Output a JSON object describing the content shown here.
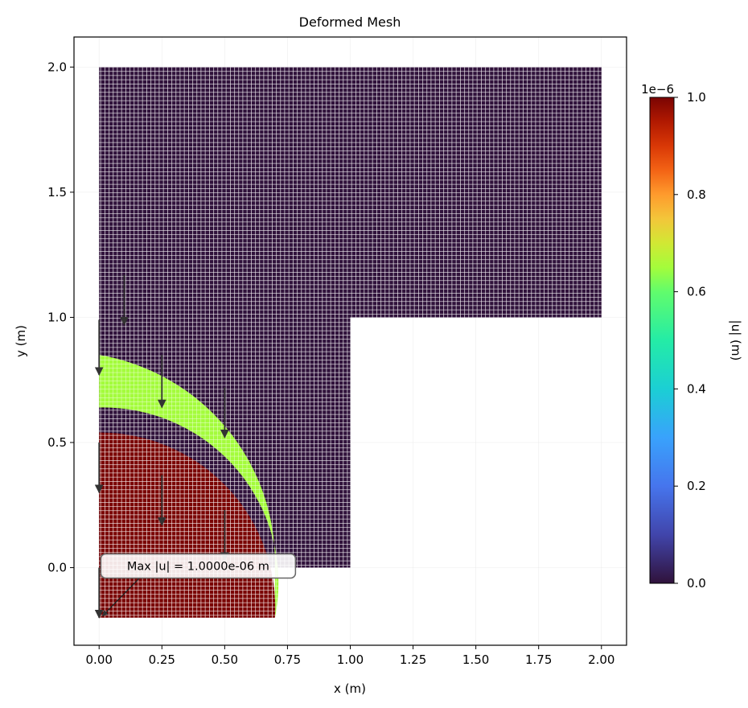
{
  "chart_data": {
    "type": "heatmap",
    "title": "Deformed Mesh",
    "xlabel": "x (m)",
    "ylabel": "y (m)",
    "xlim": [
      -0.1,
      2.1
    ],
    "ylim": [
      -0.31,
      2.12
    ],
    "xticks": [
      "0.00",
      "0.25",
      "0.50",
      "0.75",
      "1.00",
      "1.25",
      "1.50",
      "1.75",
      "2.00"
    ],
    "yticks": [
      "0.0",
      "0.5",
      "1.0",
      "1.5",
      "2.0"
    ],
    "grid": true,
    "colorbar": {
      "label": "|u| (m)",
      "range": [
        0,
        1.0
      ],
      "ticks": [
        "0.0",
        "0.2",
        "0.4",
        "0.6",
        "0.8",
        "1.0"
      ],
      "offset_text": "1e−6",
      "colormap": "turbo"
    },
    "domain": {
      "shape": "L-shaped",
      "vertical_leg": {
        "x": [
          0,
          1.0
        ],
        "y": [
          0,
          2.0
        ]
      },
      "horizontal_leg": {
        "x": [
          1.0,
          2.0
        ],
        "y": [
          1.0,
          2.0
        ]
      }
    },
    "displaced_regions": [
      {
        "name": "circular region",
        "radius": 0.7,
        "center": [
          0,
          0
        ],
        "displacement_y": -0.2,
        "magnitude": 1e-06
      },
      {
        "name": "annulus band",
        "radius_inner": 0.7,
        "radius_outer": 0.84,
        "center": [
          0,
          0
        ],
        "magnitude": 5e-07
      }
    ],
    "arrows": [
      {
        "x": 0.1,
        "y": 1.17,
        "dx": 0,
        "dy": -0.2
      },
      {
        "x": 0.0,
        "y": 0.99,
        "dx": 0,
        "dy": -0.22
      },
      {
        "x": 0.25,
        "y": 0.85,
        "dx": 0,
        "dy": -0.21
      },
      {
        "x": 0.5,
        "y": 0.72,
        "dx": 0,
        "dy": -0.2
      },
      {
        "x": 0.0,
        "y": 0.5,
        "dx": 0,
        "dy": -0.2
      },
      {
        "x": 0.25,
        "y": 0.37,
        "dx": 0,
        "dy": -0.2
      },
      {
        "x": 0.5,
        "y": 0.23,
        "dx": 0,
        "dy": -0.2
      },
      {
        "x": 0.0,
        "y": 0.0,
        "dx": 0,
        "dy": -0.2
      }
    ],
    "annotation": {
      "text": "Max |u| = 1.0000e-06 m",
      "points_to": [
        0.0,
        -0.2
      ],
      "text_at": [
        0.42,
        0.01
      ]
    },
    "colors": {
      "background_mesh": "#30123b",
      "max_region": "#7a0403",
      "band": "#a4fc3c",
      "arrow": "#333333"
    }
  }
}
